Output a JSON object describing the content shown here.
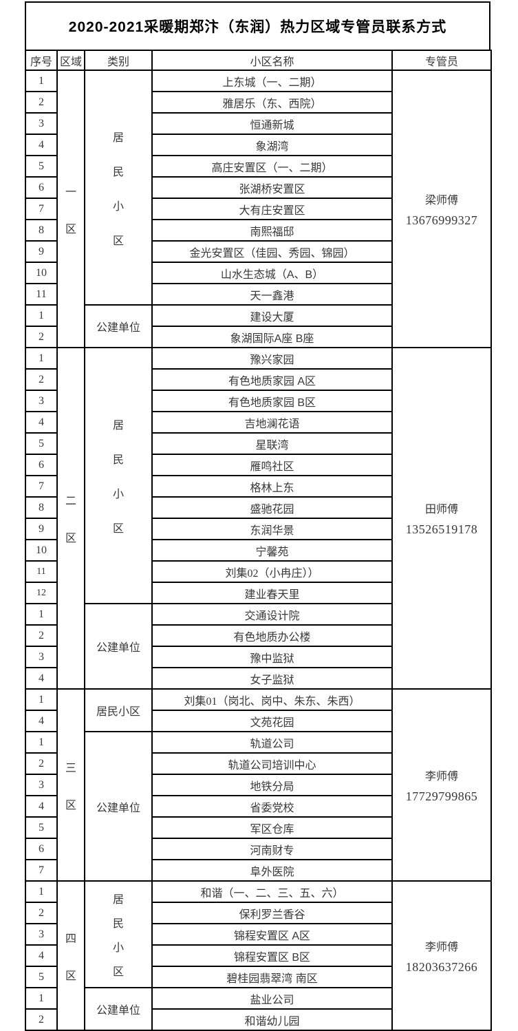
{
  "page": {
    "title": "2020-2021采暖期郑汴（东润）热力区域专管员联系方式"
  },
  "table": {
    "headers": [
      "序号",
      "区域",
      "类别",
      "小区名称",
      "专管员"
    ],
    "sections": [
      {
        "region": "一区",
        "manager": {
          "name": "梁师傅",
          "phone": "13676999327"
        },
        "groups": [
          {
            "category": "居民小区",
            "vertical": true,
            "rows": [
              {
                "no": "1",
                "name": "上东城（一、二期）"
              },
              {
                "no": "2",
                "name": "雅居乐（东、西院）"
              },
              {
                "no": "3",
                "name": "恒通新城"
              },
              {
                "no": "4",
                "name": "象湖湾"
              },
              {
                "no": "5",
                "name": "高庄安置区（一、二期）"
              },
              {
                "no": "6",
                "name": "张湖桥安置区"
              },
              {
                "no": "7",
                "name": "大有庄安置区"
              },
              {
                "no": "8",
                "name": "南熙福邸"
              },
              {
                "no": "9",
                "name": "金光安置区（佳园、秀园、锦园）"
              },
              {
                "no": "10",
                "name": "山水生态城（A、B）"
              },
              {
                "no": "11",
                "name": "天一鑫港"
              }
            ]
          },
          {
            "category": "公建单位",
            "vertical": false,
            "rows": [
              {
                "no": "1",
                "name": "建设大厦"
              },
              {
                "no": "2",
                "name": "象湖国际A座 B座"
              }
            ]
          }
        ]
      },
      {
        "region": "二区",
        "manager": {
          "name": "田师傅",
          "phone": "13526519178"
        },
        "groups": [
          {
            "category": "居民小区",
            "vertical": true,
            "rows": [
              {
                "no": "1",
                "name": "豫兴家园"
              },
              {
                "no": "2",
                "name": "有色地质家园  A区"
              },
              {
                "no": "3",
                "name": "有色地质家园  B区"
              },
              {
                "no": "4",
                "name": "吉地澜花语"
              },
              {
                "no": "5",
                "name": "星联湾"
              },
              {
                "no": "6",
                "name": "雁鸣社区"
              },
              {
                "no": "7",
                "name": "格林上东"
              },
              {
                "no": "8",
                "name": "盛驰花园"
              },
              {
                "no": "9",
                "name": "东润华景"
              },
              {
                "no": "10",
                "name": "宁馨苑"
              },
              {
                "no": "11",
                "name": "刘集02（小冉庄））",
                "serif": true,
                "small_no": true
              },
              {
                "no": "12",
                "name": "建业春天里",
                "small_no": true
              }
            ]
          },
          {
            "category": "公建单位",
            "vertical": false,
            "rows": [
              {
                "no": "1",
                "name": "交通设计院"
              },
              {
                "no": "2",
                "name": "有色地质办公楼"
              },
              {
                "no": "3",
                "name": "豫中监狱"
              },
              {
                "no": "4",
                "name": "女子监狱"
              }
            ]
          }
        ]
      },
      {
        "region": "三区",
        "manager": {
          "name": "李师傅",
          "phone": "17729799865"
        },
        "groups": [
          {
            "category": "居民小区",
            "vertical": false,
            "rows": [
              {
                "no": "1",
                "name": "刘集01（岗北、岗中、朱东、朱西）",
                "serif": true
              },
              {
                "no": "4",
                "name": "文苑花园"
              }
            ]
          },
          {
            "category": "公建单位",
            "vertical": false,
            "rows": [
              {
                "no": "1",
                "name": "轨道公司"
              },
              {
                "no": "2",
                "name": "轨道公司培训中心"
              },
              {
                "no": "3",
                "name": "地铁分局"
              },
              {
                "no": "4",
                "name": "省委党校"
              },
              {
                "no": "5",
                "name": "军区仓库"
              },
              {
                "no": "6",
                "name": "河南财专"
              },
              {
                "no": "7",
                "name": "阜外医院"
              }
            ]
          }
        ]
      },
      {
        "region": "四区",
        "manager": {
          "name": "李师傅",
          "phone": "18203637266"
        },
        "groups": [
          {
            "category": "居民小区",
            "vertical": true,
            "rows": [
              {
                "no": "1",
                "name": "和谐（一、二、三、五、六）"
              },
              {
                "no": "2",
                "name": "保利罗兰香谷"
              },
              {
                "no": "3",
                "name": "锦程安置区  A区"
              },
              {
                "no": "4",
                "name": "锦程安置区  B区"
              },
              {
                "no": "5",
                "name": "碧桂园翡翠湾  南区"
              }
            ]
          },
          {
            "category": "公建单位",
            "vertical": false,
            "rows": [
              {
                "no": "1",
                "name": "盐业公司"
              },
              {
                "no": "2",
                "name": "和谐幼儿园"
              }
            ]
          }
        ]
      }
    ]
  }
}
